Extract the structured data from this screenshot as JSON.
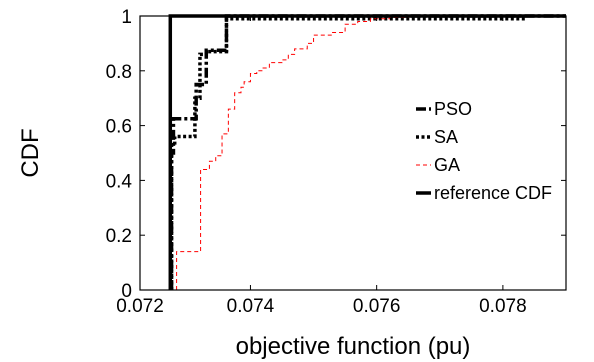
{
  "chart_data": {
    "type": "line",
    "title": "",
    "xlabel": "objective function (pu)",
    "ylabel": "CDF",
    "xlim": [
      0.07225,
      0.079
    ],
    "ylim": [
      0,
      1
    ],
    "xticks": [
      "0.072",
      "0.074",
      "0.076",
      "0.078"
    ],
    "xtick_values": [
      0.07225,
      0.074,
      0.076,
      0.078
    ],
    "yticks": [
      "0",
      "0.2",
      "0.4",
      "0.6",
      "0.8",
      "1"
    ],
    "ytick_values": [
      0,
      0.2,
      0.4,
      0.6,
      0.8,
      1
    ],
    "grid": false,
    "legend_position": "right",
    "series": [
      {
        "name": "PSO",
        "color": "#000000",
        "style": "dashdot",
        "width": 3.5,
        "x": [
          0.07275,
          0.07275,
          0.07278,
          0.07278,
          0.07296,
          0.07296,
          0.07314,
          0.07314,
          0.0733,
          0.0733,
          0.07362,
          0.07362,
          0.079
        ],
        "y": [
          0,
          0.5,
          0.5,
          0.625,
          0.625,
          0.625,
          0.625,
          0.75,
          0.75,
          0.875,
          0.875,
          1.0,
          1.0
        ]
      },
      {
        "name": "SA",
        "color": "#000000",
        "style": "dotted",
        "width": 3.5,
        "x": [
          0.07275,
          0.07275,
          0.0728,
          0.0728,
          0.07312,
          0.07312,
          0.0732,
          0.0732,
          0.0733,
          0.0733,
          0.07362,
          0.07362,
          0.07836
        ],
        "y": [
          0,
          0.53,
          0.53,
          0.56,
          0.56,
          0.7,
          0.7,
          0.86,
          0.86,
          0.87,
          0.87,
          0.99,
          0.99
        ]
      },
      {
        "name": "GA",
        "color": "#ff0000",
        "style": "dashed",
        "width": 1,
        "x": [
          0.07283,
          0.07283,
          0.0731,
          0.0731,
          0.07321,
          0.07321,
          0.07335,
          0.07335,
          0.07345,
          0.07345,
          0.07355,
          0.07355,
          0.07365,
          0.07365,
          0.07375,
          0.07375,
          0.07385,
          0.07385,
          0.0739,
          0.0739,
          0.074,
          0.074,
          0.0741,
          0.0741,
          0.0742,
          0.0742,
          0.0743,
          0.0743,
          0.0745,
          0.0745,
          0.0746,
          0.0746,
          0.0747,
          0.0747,
          0.0749,
          0.0749,
          0.075,
          0.075,
          0.07515,
          0.07515,
          0.0753,
          0.0753,
          0.0755,
          0.0755,
          0.0757,
          0.0757,
          0.0759,
          0.0759,
          0.0762,
          0.0762,
          0.0765,
          0.0765,
          0.0785,
          0.0785,
          0.079
        ],
        "y": [
          0,
          0.14,
          0.14,
          0.14,
          0.14,
          0.44,
          0.44,
          0.47,
          0.47,
          0.49,
          0.49,
          0.57,
          0.57,
          0.66,
          0.66,
          0.72,
          0.72,
          0.74,
          0.74,
          0.76,
          0.76,
          0.79,
          0.79,
          0.8,
          0.8,
          0.81,
          0.81,
          0.83,
          0.83,
          0.84,
          0.84,
          0.86,
          0.86,
          0.88,
          0.88,
          0.9,
          0.9,
          0.93,
          0.93,
          0.93,
          0.93,
          0.94,
          0.94,
          0.97,
          0.97,
          0.98,
          0.98,
          0.99,
          0.99,
          0.995,
          0.995,
          1.0,
          1.0,
          1.0,
          1.0
        ]
      },
      {
        "name": "reference CDF",
        "color": "#000000",
        "style": "solid",
        "width": 3.5,
        "x": [
          0.07273,
          0.07273,
          0.079
        ],
        "y": [
          0,
          1.0,
          1.0
        ]
      }
    ]
  }
}
